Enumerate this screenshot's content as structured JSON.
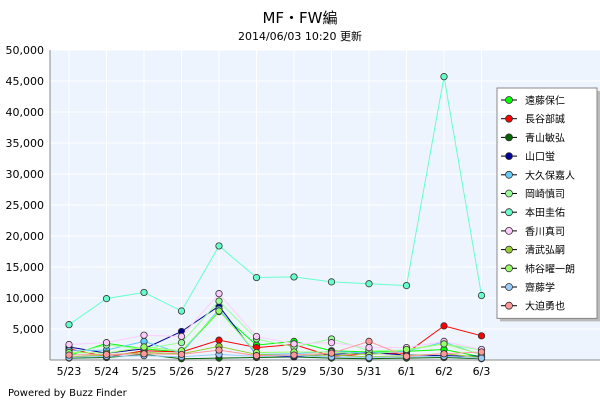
{
  "chart_data": {
    "type": "line",
    "title": "MF・FW編",
    "subtitle": "2014/06/03 10:20 更新",
    "footer": "Powered by Buzz Finder",
    "xlabel": "",
    "ylabel": "",
    "ylim": [
      0,
      50000
    ],
    "yticks": [
      5000,
      10000,
      15000,
      20000,
      25000,
      30000,
      35000,
      40000,
      45000,
      50000
    ],
    "ytick_labels": [
      "5,000",
      "10,000",
      "15,000",
      "20,000",
      "25,000",
      "30,000",
      "35,000",
      "40,000",
      "45,000",
      "50,000"
    ],
    "categories": [
      "5/23",
      "5/24",
      "5/25",
      "5/26",
      "5/27",
      "5/28",
      "5/29",
      "5/30",
      "5/31",
      "6/1",
      "6/2",
      "6/3"
    ],
    "grid": true,
    "legend_position": "right",
    "colors": {
      "plot_background": "#eef4fd",
      "grid": "#ffffff",
      "border": "#888888"
    },
    "series": [
      {
        "name": "遠藤保仁",
        "color": "#00ff00",
        "values": [
          700,
          2700,
          1800,
          1300,
          7800,
          2400,
          3000,
          1500,
          1300,
          1400,
          1700,
          500
        ]
      },
      {
        "name": "長谷部誠",
        "color": "#ff0000",
        "values": [
          1800,
          500,
          1500,
          1300,
          3200,
          2000,
          2500,
          600,
          1000,
          1100,
          5500,
          3900
        ]
      },
      {
        "name": "青山敏弘",
        "color": "#006600",
        "values": [
          300,
          400,
          900,
          200,
          300,
          400,
          500,
          300,
          200,
          300,
          400,
          200
        ]
      },
      {
        "name": "山口蛍",
        "color": "#000099",
        "values": [
          2100,
          1100,
          1800,
          4600,
          8700,
          800,
          500,
          900,
          1200,
          800,
          700,
          600
        ]
      },
      {
        "name": "大久保嘉人",
        "color": "#66ccff",
        "values": [
          1500,
          1600,
          3000,
          1100,
          8200,
          900,
          1000,
          1400,
          1100,
          1400,
          2900,
          800
        ]
      },
      {
        "name": "岡崎慎司",
        "color": "#99ff99",
        "values": [
          1000,
          2400,
          1800,
          2800,
          9500,
          3400,
          2100,
          3400,
          1500,
          1600,
          2600,
          1600
        ]
      },
      {
        "name": "本田圭佑",
        "color": "#66ffcc",
        "values": [
          5700,
          9900,
          10900,
          7900,
          18400,
          13300,
          13400,
          12600,
          12300,
          12000,
          45700,
          10400
        ]
      },
      {
        "name": "香川真司",
        "color": "#ffccff",
        "values": [
          2500,
          2800,
          4000,
          3800,
          10700,
          3800,
          2600,
          2800,
          2000,
          2000,
          3000,
          1700
        ]
      },
      {
        "name": "清武弘嗣",
        "color": "#99cc33",
        "values": [
          500,
          800,
          1200,
          1000,
          2200,
          900,
          700,
          800,
          500,
          700,
          1000,
          400
        ]
      },
      {
        "name": "柿谷曜一朗",
        "color": "#99ff66",
        "values": [
          1200,
          1100,
          2100,
          1500,
          7900,
          1200,
          1300,
          1300,
          800,
          1700,
          2600,
          900
        ]
      },
      {
        "name": "齋藤学",
        "color": "#99ccff",
        "values": [
          400,
          600,
          700,
          500,
          900,
          600,
          700,
          500,
          400,
          500,
          600,
          300
        ]
      },
      {
        "name": "大迫勇也",
        "color": "#ff9999",
        "values": [
          800,
          900,
          1000,
          900,
          1600,
          700,
          800,
          1100,
          3000,
          600,
          1000,
          1300
        ]
      }
    ]
  }
}
